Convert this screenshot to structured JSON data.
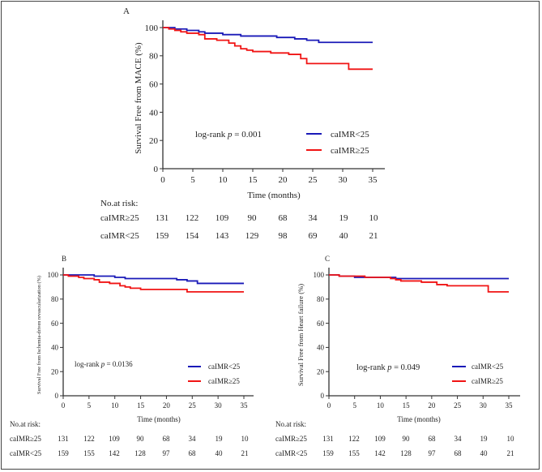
{
  "chart_data": [
    {
      "type": "line",
      "panel_label": "A",
      "ylabel": "Survival Free from MACE (%)",
      "xlabel": "Time (months)",
      "xlim": [
        0,
        35
      ],
      "ylim": [
        0,
        100
      ],
      "xticks": [
        0,
        5,
        10,
        15,
        20,
        25,
        30,
        35
      ],
      "yticks": [
        0,
        20,
        40,
        60,
        80,
        100
      ],
      "annotation": {
        "prefix": "log-rank ",
        "p_symbol": "p",
        "value": " = 0.001"
      },
      "legend_position": "bottom-right",
      "series": [
        {
          "name": "caIMR<25",
          "color": "#1a1ab8",
          "steps": [
            [
              0,
              100
            ],
            [
              2,
              99
            ],
            [
              4,
              98
            ],
            [
              6,
              97
            ],
            [
              7,
              96
            ],
            [
              10,
              95
            ],
            [
              13,
              94
            ],
            [
              19,
              93
            ],
            [
              22,
              92
            ],
            [
              24,
              91
            ],
            [
              26,
              89.5
            ],
            [
              35,
              89.5
            ]
          ]
        },
        {
          "name": "caIMR≥25",
          "color": "#f01414",
          "steps": [
            [
              0,
              100
            ],
            [
              1,
              99
            ],
            [
              2,
              98
            ],
            [
              3,
              97
            ],
            [
              4,
              96
            ],
            [
              6,
              95
            ],
            [
              7,
              92
            ],
            [
              9,
              91
            ],
            [
              11,
              89
            ],
            [
              12,
              87
            ],
            [
              13,
              85
            ],
            [
              14,
              84
            ],
            [
              15,
              83
            ],
            [
              18,
              82
            ],
            [
              21,
              81
            ],
            [
              23,
              78
            ],
            [
              24,
              74.5
            ],
            [
              31,
              70.5
            ],
            [
              35,
              70.5
            ]
          ]
        }
      ],
      "risk_table": {
        "title": "No.at risk:",
        "rows": [
          {
            "label": "caIMR≥25",
            "values": [
              "131",
              "122",
              "109",
              "90",
              "68",
              "34",
              "19",
              "10"
            ]
          },
          {
            "label": "caIMR<25",
            "values": [
              "159",
              "154",
              "143",
              "129",
              "98",
              "69",
              "40",
              "21"
            ]
          }
        ]
      }
    },
    {
      "type": "line",
      "panel_label": "B",
      "ylabel": "Survival Free from Ischemia-driven revascularization (%)",
      "xlabel": "Time (months)",
      "xlim": [
        0,
        35
      ],
      "ylim": [
        0,
        100
      ],
      "xticks": [
        0,
        5,
        10,
        15,
        20,
        25,
        30,
        35
      ],
      "yticks": [
        0,
        20,
        40,
        60,
        80,
        100
      ],
      "annotation": {
        "prefix": "log-rank ",
        "p_symbol": "p",
        "value": " = 0.0136"
      },
      "legend_position": "bottom-right",
      "series": [
        {
          "name": "caIMR<25",
          "color": "#1a1ab8",
          "steps": [
            [
              0,
              100
            ],
            [
              6,
              99
            ],
            [
              10,
              98
            ],
            [
              12,
              97
            ],
            [
              22,
              96
            ],
            [
              24,
              95
            ],
            [
              26,
              93
            ],
            [
              35,
              93
            ]
          ]
        },
        {
          "name": "caIMR≥25",
          "color": "#f01414",
          "steps": [
            [
              0,
              100
            ],
            [
              1,
              99
            ],
            [
              3,
              98
            ],
            [
              4,
              97
            ],
            [
              6,
              96
            ],
            [
              7,
              94
            ],
            [
              9,
              93
            ],
            [
              11,
              91
            ],
            [
              12,
              90
            ],
            [
              13,
              89
            ],
            [
              15,
              88
            ],
            [
              24,
              86
            ],
            [
              35,
              86
            ]
          ]
        }
      ],
      "risk_table": {
        "title": "No.at risk:",
        "rows": [
          {
            "label": "caIMR≥25",
            "values": [
              "131",
              "122",
              "109",
              "90",
              "68",
              "34",
              "19",
              "10"
            ]
          },
          {
            "label": "caIMR<25",
            "values": [
              "159",
              "155",
              "142",
              "128",
              "97",
              "68",
              "40",
              "21"
            ]
          }
        ]
      }
    },
    {
      "type": "line",
      "panel_label": "C",
      "ylabel": "Survival Free from Heart failure (%)",
      "xlabel": "Time (months)",
      "xlim": [
        0,
        35
      ],
      "ylim": [
        0,
        100
      ],
      "xticks": [
        0,
        5,
        10,
        15,
        20,
        25,
        30,
        35
      ],
      "yticks": [
        0,
        20,
        40,
        60,
        80,
        100
      ],
      "annotation": {
        "prefix": "log-rank ",
        "p_symbol": "p",
        "value": " = 0.049"
      },
      "legend_position": "bottom-right",
      "series": [
        {
          "name": "caIMR<25",
          "color": "#1a1ab8",
          "steps": [
            [
              0,
              100
            ],
            [
              2,
              99
            ],
            [
              5,
              98
            ],
            [
              13,
              97
            ],
            [
              35,
              97
            ]
          ]
        },
        {
          "name": "caIMR≥25",
          "color": "#f01414",
          "steps": [
            [
              0,
              100
            ],
            [
              2,
              99
            ],
            [
              7,
              98
            ],
            [
              12,
              97
            ],
            [
              13,
              96
            ],
            [
              14,
              95
            ],
            [
              18,
              94
            ],
            [
              21,
              92
            ],
            [
              23,
              91
            ],
            [
              31,
              86
            ],
            [
              35,
              86
            ]
          ]
        }
      ],
      "risk_table": {
        "title": "No.at risk:",
        "rows": [
          {
            "label": "caIMR≥25",
            "values": [
              "131",
              "122",
              "109",
              "90",
              "68",
              "34",
              "19",
              "10"
            ]
          },
          {
            "label": "caIMR<25",
            "values": [
              "159",
              "155",
              "142",
              "128",
              "97",
              "68",
              "40",
              "21"
            ]
          }
        ]
      }
    }
  ]
}
